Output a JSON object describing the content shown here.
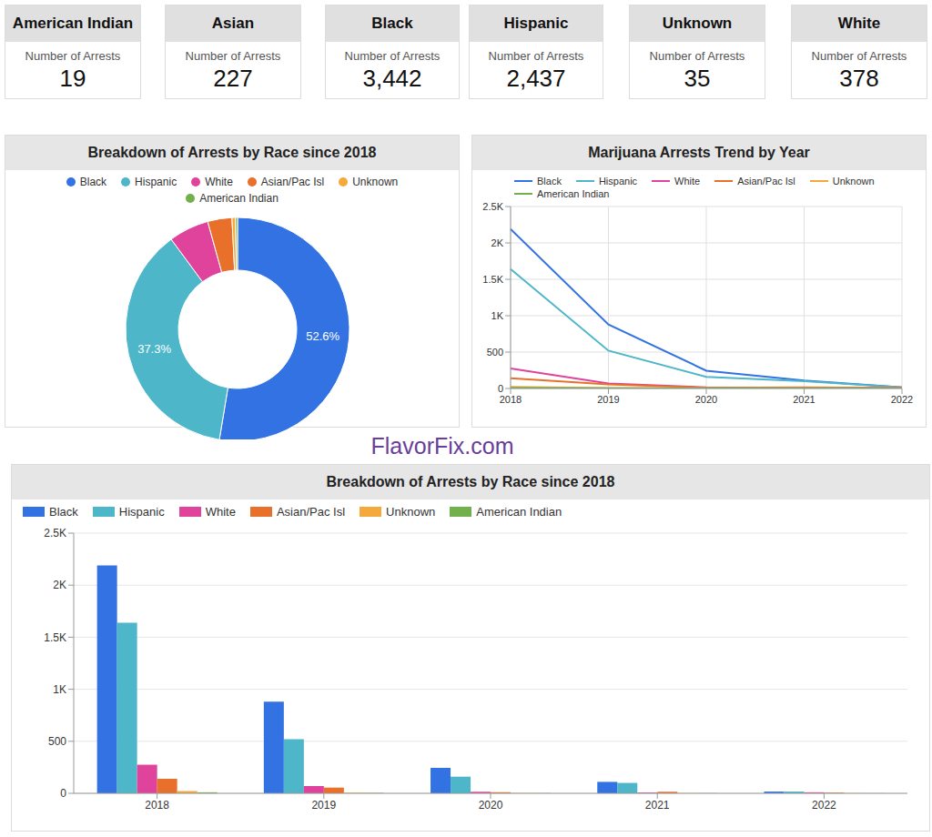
{
  "cards": {
    "label": "Number of Arrests",
    "items": [
      {
        "title": "American Indian",
        "value": "19"
      },
      {
        "title": "Asian",
        "value": "227"
      },
      {
        "title": "Black",
        "value": "3,442"
      },
      {
        "title": "Hispanic",
        "value": "2,437"
      },
      {
        "title": "Unknown",
        "value": "35"
      },
      {
        "title": "White",
        "value": "378"
      }
    ]
  },
  "watermark": "FlavorFix.com",
  "chart_data": [
    {
      "type": "pie",
      "title": "Breakdown of Arrests by Race since 2018",
      "categories": [
        "Black",
        "Hispanic",
        "White",
        "Asian/Pac Isl",
        "Unknown",
        "American Indian"
      ],
      "values": [
        52.6,
        37.3,
        5.8,
        3.5,
        0.5,
        0.3
      ],
      "value_labels": [
        "52.6%",
        "37.3%",
        null,
        null,
        null,
        null
      ],
      "data_labels": true,
      "colors": [
        "#3372e2",
        "#4db6c9",
        "#e0439c",
        "#e8702a",
        "#f4a93a",
        "#72b04d"
      ],
      "legend": "top"
    },
    {
      "type": "line",
      "title": "Marijuana Arrests Trend by Year",
      "categories": [
        "2018",
        "2019",
        "2020",
        "2021",
        "2022"
      ],
      "series": [
        {
          "name": "Black",
          "color": "#3372e2",
          "values": [
            2190,
            880,
            245,
            110,
            17
          ]
        },
        {
          "name": "Hispanic",
          "color": "#4db6c9",
          "values": [
            1640,
            520,
            160,
            100,
            17
          ]
        },
        {
          "name": "White",
          "color": "#e0439c",
          "values": [
            275,
            70,
            15,
            8,
            10
          ]
        },
        {
          "name": "Asian/Pac Isl",
          "color": "#e8702a",
          "values": [
            140,
            55,
            10,
            15,
            7
          ]
        },
        {
          "name": "Unknown",
          "color": "#f4a93a",
          "values": [
            22,
            6,
            3,
            2,
            2
          ]
        },
        {
          "name": "American Indian",
          "color": "#72b04d",
          "values": [
            10,
            4,
            2,
            2,
            1
          ]
        }
      ],
      "ylim": [
        0,
        2500
      ],
      "yticks": [
        0,
        500,
        {
          "value": 1000,
          "label": "1K"
        },
        {
          "value": 1500,
          "label": "1.5K"
        },
        {
          "value": 2000,
          "label": "2K"
        },
        {
          "value": 2500,
          "label": "2.5K"
        }
      ],
      "grid": true,
      "legend": "top"
    },
    {
      "type": "bar",
      "title": "Breakdown of Arrests by Race since 2018",
      "categories": [
        "2018",
        "2019",
        "2020",
        "2021",
        "2022"
      ],
      "series": [
        {
          "name": "Black",
          "color": "#3372e2",
          "values": [
            2190,
            880,
            245,
            110,
            17
          ]
        },
        {
          "name": "Hispanic",
          "color": "#4db6c9",
          "values": [
            1640,
            520,
            160,
            100,
            17
          ]
        },
        {
          "name": "White",
          "color": "#e0439c",
          "values": [
            275,
            70,
            15,
            8,
            10
          ]
        },
        {
          "name": "Asian/Pac Isl",
          "color": "#e8702a",
          "values": [
            140,
            55,
            10,
            15,
            7
          ]
        },
        {
          "name": "Unknown",
          "color": "#f4a93a",
          "values": [
            22,
            6,
            3,
            2,
            2
          ]
        },
        {
          "name": "American Indian",
          "color": "#72b04d",
          "values": [
            10,
            4,
            2,
            2,
            1
          ]
        }
      ],
      "ylim": [
        0,
        2500
      ],
      "yticks": [
        0,
        500,
        {
          "value": 1000,
          "label": "1K"
        },
        {
          "value": 1500,
          "label": "1.5K"
        },
        {
          "value": 2000,
          "label": "2K"
        },
        {
          "value": 2500,
          "label": "2.5K"
        }
      ],
      "grid": true,
      "legend": "top"
    }
  ]
}
